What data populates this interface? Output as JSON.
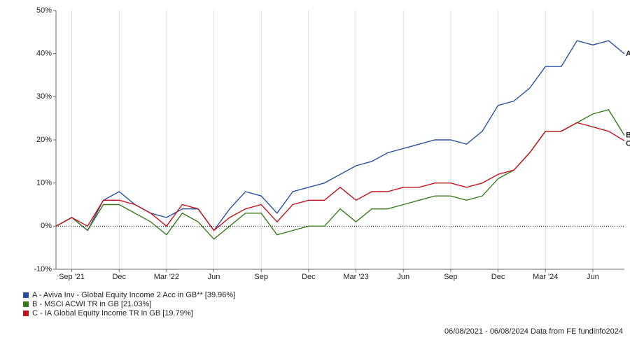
{
  "chart_data": {
    "type": "line",
    "x": [
      "2021-08",
      "2021-09",
      "2021-10",
      "2021-11",
      "2021-12",
      "2022-01",
      "2022-02",
      "2022-03",
      "2022-04",
      "2022-05",
      "2022-06",
      "2022-07",
      "2022-08",
      "2022-09",
      "2022-10",
      "2022-11",
      "2022-12",
      "2023-01",
      "2023-02",
      "2023-03",
      "2023-04",
      "2023-05",
      "2023-06",
      "2023-07",
      "2023-08",
      "2023-09",
      "2023-10",
      "2023-11",
      "2023-12",
      "2024-01",
      "2024-02",
      "2024-03",
      "2024-04",
      "2024-05",
      "2024-06",
      "2024-07",
      "2024-08"
    ],
    "series": [
      {
        "name": "A - Aviva Inv - Global Equity Income 2 Acc in GB** [39.96%]",
        "label": "A",
        "color": "#2b4fa0",
        "values": [
          0,
          2,
          -1,
          6,
          8,
          5,
          3,
          2,
          4,
          4,
          -1,
          4,
          8,
          7,
          3,
          8,
          9,
          10,
          12,
          14,
          15,
          17,
          18,
          19,
          20,
          20,
          19,
          22,
          28,
          29,
          32,
          37,
          37,
          43,
          42,
          43,
          39.96
        ]
      },
      {
        "name": "B - MSCI ACWI TR in GB [21.03%]",
        "label": "B",
        "color": "#3a7a1e",
        "values": [
          0,
          2,
          -1,
          5,
          5,
          3,
          1,
          -2,
          3,
          1,
          -3,
          0,
          3,
          3,
          -2,
          -1,
          0,
          0,
          4,
          1,
          4,
          4,
          5,
          6,
          7,
          7,
          6,
          7,
          11,
          13,
          17,
          22,
          22,
          24,
          26,
          27,
          21.03
        ]
      },
      {
        "name": "C - IA Global Equity Income TR in GB [19.79%]",
        "label": "C",
        "color": "#c0141c",
        "values": [
          0,
          2,
          0,
          6,
          6,
          5,
          3,
          0,
          5,
          4,
          -1,
          2,
          4,
          5,
          1,
          5,
          6,
          6,
          9,
          6,
          8,
          8,
          9,
          9,
          10,
          10,
          9,
          10,
          12,
          13,
          17,
          22,
          22,
          24,
          23,
          22,
          19.79
        ]
      }
    ],
    "xlim": [
      "2021-08",
      "2024-08"
    ],
    "xticks": [
      {
        "value": "2021-09",
        "label": "Sep '21"
      },
      {
        "value": "2021-12",
        "label": "Dec"
      },
      {
        "value": "2022-03",
        "label": "Mar '22"
      },
      {
        "value": "2022-06",
        "label": "Jun"
      },
      {
        "value": "2022-09",
        "label": "Sep"
      },
      {
        "value": "2022-12",
        "label": "Dec"
      },
      {
        "value": "2023-03",
        "label": "Mar '23"
      },
      {
        "value": "2023-06",
        "label": "Jun"
      },
      {
        "value": "2023-09",
        "label": "Sep"
      },
      {
        "value": "2023-12",
        "label": "Dec"
      },
      {
        "value": "2024-03",
        "label": "Mar '24"
      },
      {
        "value": "2024-06",
        "label": "Jun"
      }
    ],
    "ylim": [
      -10,
      50
    ],
    "yticks": [
      {
        "value": -10,
        "label": "-10%"
      },
      {
        "value": 0,
        "label": "0%"
      },
      {
        "value": 10,
        "label": "10%"
      },
      {
        "value": 20,
        "label": "20%"
      },
      {
        "value": 30,
        "label": "30%"
      },
      {
        "value": 40,
        "label": "40%"
      },
      {
        "value": 50,
        "label": "50%"
      }
    ],
    "grid": "x",
    "footer": "06/08/2021 - 06/08/2024 Data from FE fundinfo2024"
  }
}
